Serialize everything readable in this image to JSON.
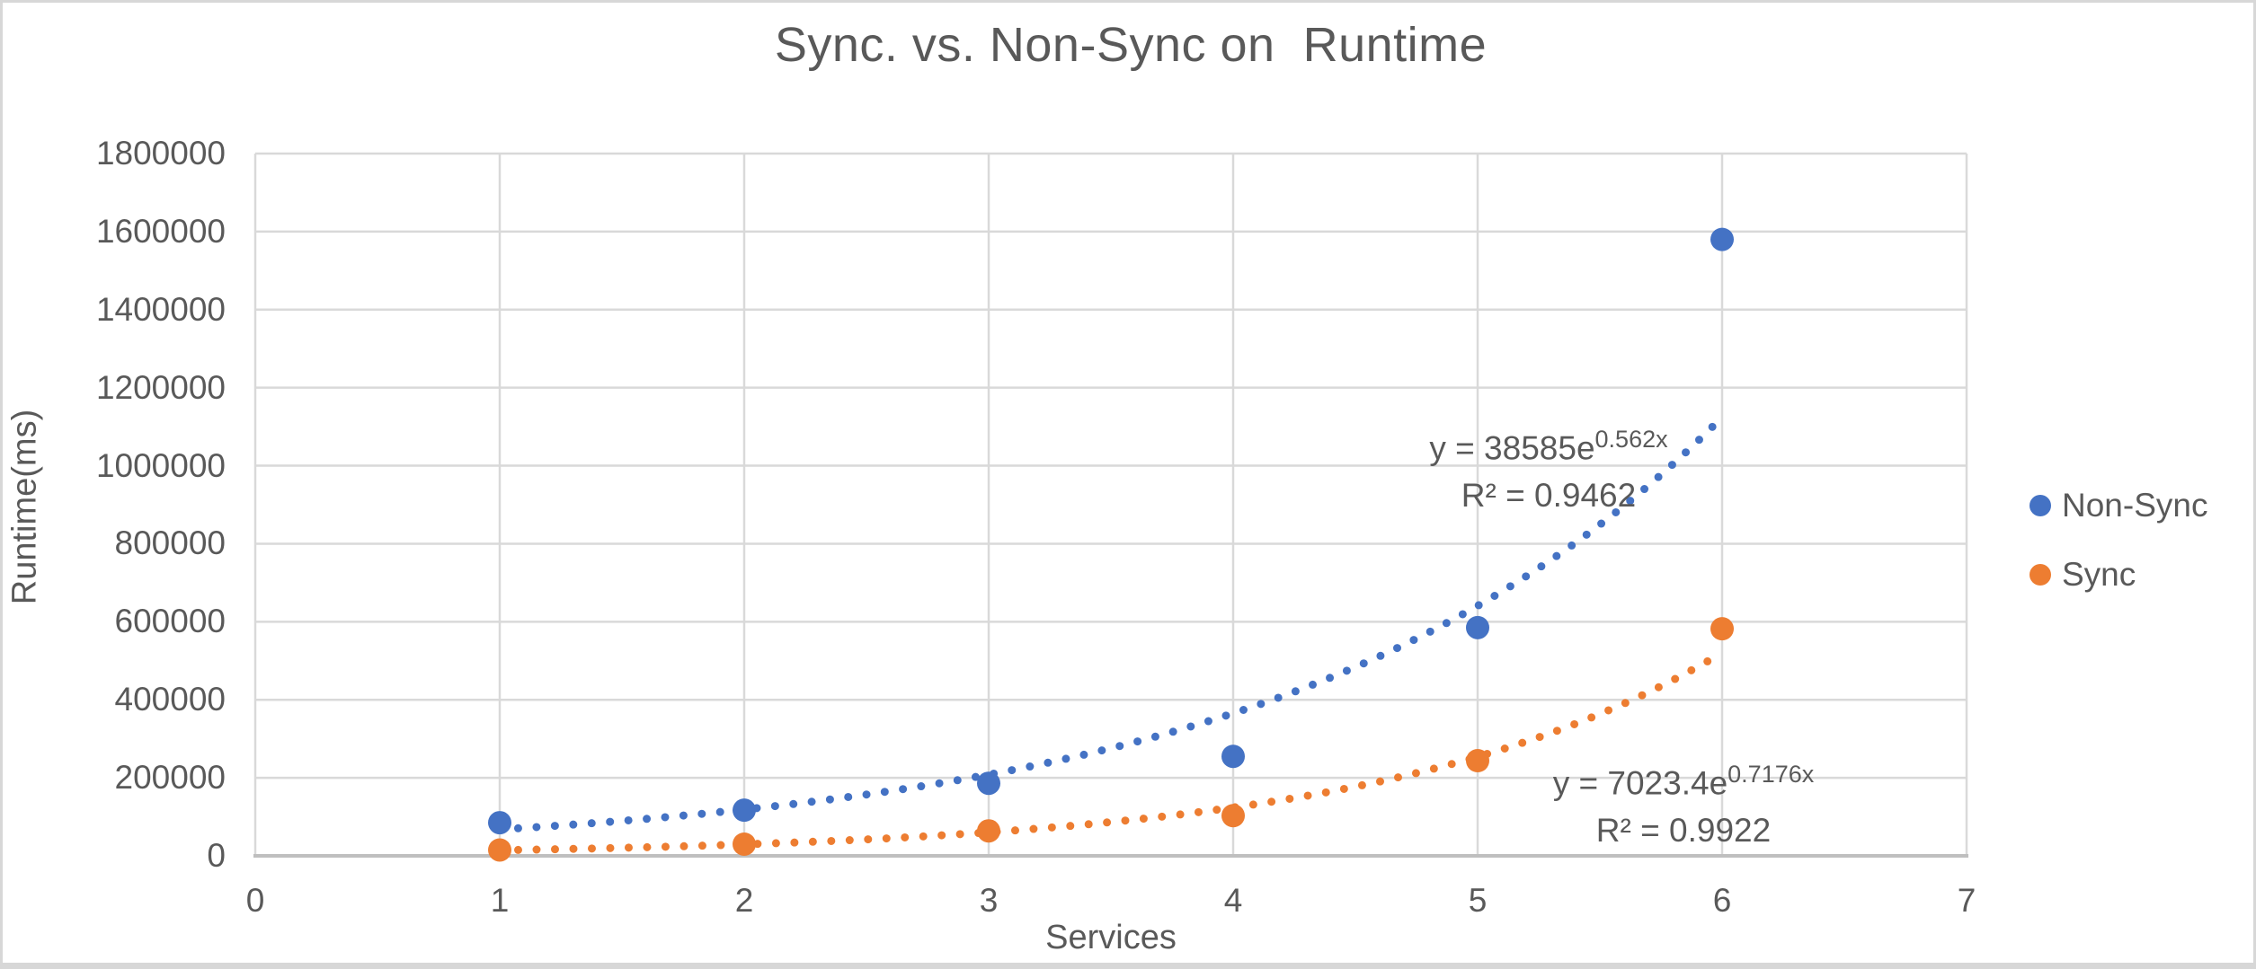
{
  "title": "Sync. vs. Non-Sync on  Runtime",
  "colors": {
    "non_sync": "#4472C4",
    "sync": "#ED7D31",
    "gridline": "#D9D9D9",
    "axis_line": "#BFBFBF",
    "text": "#595959",
    "frame": "#D7D7D7"
  },
  "chart_data": {
    "type": "scatter",
    "title": "Sync. vs. Non-Sync on  Runtime",
    "xlabel": "Services",
    "ylabel": "Runtime(ms)",
    "xlim": [
      0,
      7
    ],
    "ylim": [
      0,
      1800000
    ],
    "x_ticks": [
      0,
      1,
      2,
      3,
      4,
      5,
      6,
      7
    ],
    "y_ticks": [
      0,
      200000,
      400000,
      600000,
      800000,
      1000000,
      1200000,
      1400000,
      1600000,
      1800000
    ],
    "grid": true,
    "legend_position": "right",
    "series": [
      {
        "name": "Non-Sync",
        "color": "#4472C4",
        "x": [
          1,
          2,
          3,
          4,
          5,
          6
        ],
        "y": [
          85000,
          117000,
          186000,
          255000,
          585000,
          1580000
        ],
        "trendline": {
          "type": "exponential",
          "a": 38585,
          "b": 0.562,
          "range": [
            1,
            6
          ],
          "label_base": "y = 38585e",
          "label_exp": "0.562x",
          "r2_label": "R² = 0.9462"
        }
      },
      {
        "name": "Sync",
        "color": "#ED7D31",
        "x": [
          1,
          2,
          3,
          4,
          5,
          6
        ],
        "y": [
          15000,
          30000,
          64000,
          103000,
          244000,
          582000
        ],
        "trendline": {
          "type": "exponential",
          "a": 7023.4,
          "b": 0.7176,
          "range": [
            1,
            6
          ],
          "label_base": "y = 7023.4e",
          "label_exp": "0.7176x",
          "r2_label": "R² = 0.9922"
        }
      }
    ]
  },
  "legend": {
    "items": [
      {
        "label": "Non-Sync"
      },
      {
        "label": "Sync"
      }
    ]
  }
}
